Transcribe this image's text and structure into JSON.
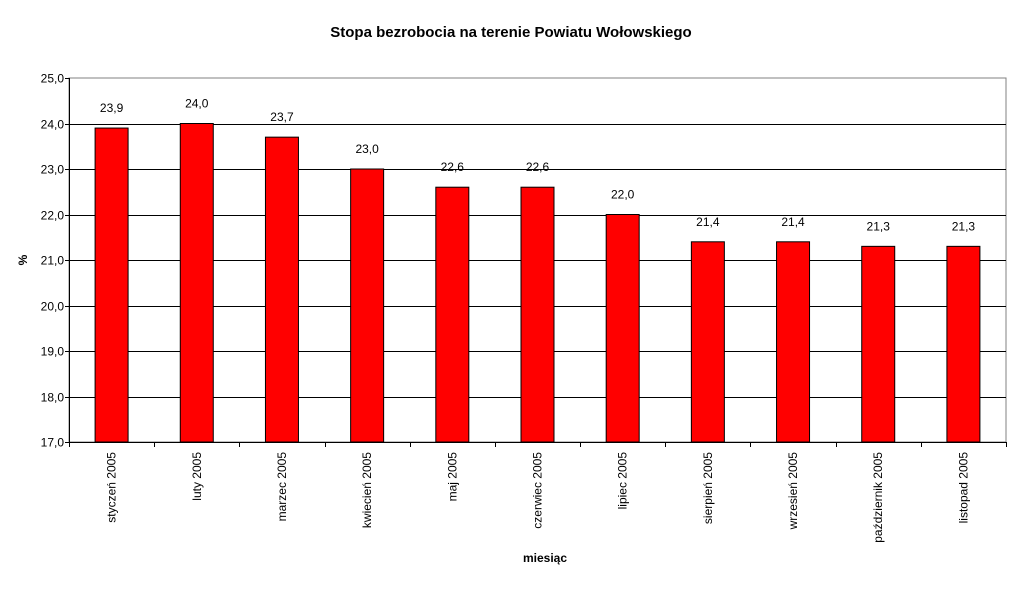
{
  "chart_data": {
    "type": "bar",
    "title": "Stopa bezrobocia na terenie Powiatu Wołowskiego",
    "xlabel": "miesiąc",
    "ylabel": "%",
    "categories": [
      "styczeń 2005",
      "luty 2005",
      "marzec 2005",
      "kwiecień 2005",
      "maj 2005",
      "czerwiec 2005",
      "lipiec 2005",
      "sierpień 2005",
      "wrzesień 2005",
      "październik 2005",
      "listopad 2005"
    ],
    "values": [
      23.9,
      24.0,
      23.7,
      23.0,
      22.6,
      22.6,
      22.0,
      21.4,
      21.4,
      21.3,
      21.3
    ],
    "data_labels": [
      "23,9",
      "24,0",
      "23,7",
      "23,0",
      "22,6",
      "22,6",
      "22,0",
      "21,4",
      "21,4",
      "21,3",
      "21,3"
    ],
    "ylim": [
      17.0,
      25.0
    ],
    "yticks": [
      "17,0",
      "18,0",
      "19,0",
      "20,0",
      "21,0",
      "22,0",
      "23,0",
      "24,0",
      "25,0"
    ],
    "grid": true,
    "legend": false,
    "bar_color": "#ff0000",
    "bar_border_color": "#000000"
  }
}
